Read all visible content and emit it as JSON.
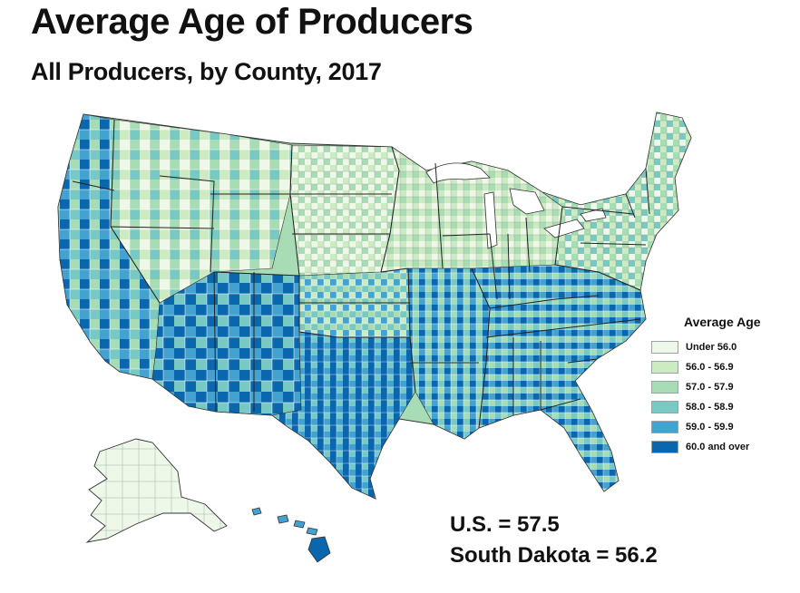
{
  "title": "Average Age of Producers",
  "subtitle": "All Producers, by County, 2017",
  "legend": {
    "title": "Average Age",
    "items": [
      {
        "label": "Under 56.0",
        "color": "#eef8e8"
      },
      {
        "label": "56.0 - 56.9",
        "color": "#cdebc2"
      },
      {
        "label": "57.0 - 57.9",
        "color": "#a8dcb5"
      },
      {
        "label": "58.0 - 58.9",
        "color": "#78c8c4"
      },
      {
        "label": "59.0 - 59.9",
        "color": "#43a2cf"
      },
      {
        "label": "60.0 and over",
        "color": "#0a66ad"
      }
    ]
  },
  "stats": {
    "us": "U.S. = 57.5",
    "state": "South Dakota = 56.2"
  }
}
